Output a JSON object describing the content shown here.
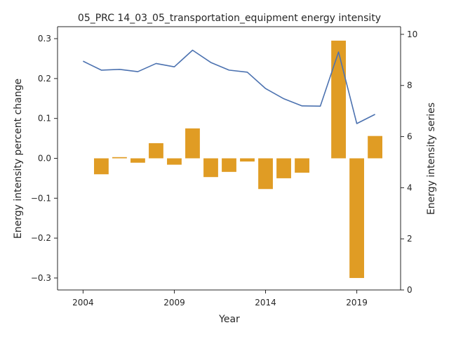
{
  "chart_data": {
    "type": "bar+line",
    "title": "05_PRC 14_03_05_transportation_equipment energy intensity",
    "xlabel": "Year",
    "ylabel_left": "Energy intensity percent change",
    "ylabel_right": "Energy intensity series",
    "x_ticks": [
      2004,
      2009,
      2014,
      2019
    ],
    "x_range": [
      2002.6,
      2021.4
    ],
    "y_left_range": [
      -0.33,
      0.33
    ],
    "y_left_ticks": [
      -0.3,
      -0.2,
      -0.1,
      0.0,
      0.1,
      0.2,
      0.3
    ],
    "y_right_range": [
      0,
      10.3
    ],
    "y_right_ticks": [
      0,
      2,
      4,
      6,
      8,
      10
    ],
    "bar_color": "#e09c24",
    "line_color": "#4c72b0",
    "bars": {
      "name": "Energy intensity percent change",
      "years": [
        2005,
        2006,
        2007,
        2008,
        2009,
        2010,
        2011,
        2012,
        2013,
        2014,
        2015,
        2016,
        2017,
        2018,
        2019,
        2020
      ],
      "values": [
        -0.04,
        0.003,
        -0.011,
        0.038,
        -0.016,
        0.075,
        -0.047,
        -0.034,
        -0.008,
        -0.077,
        -0.05,
        -0.036,
        0.0,
        0.295,
        -0.3,
        0.056
      ]
    },
    "line": {
      "name": "Energy intensity series",
      "years": [
        2004,
        2005,
        2006,
        2007,
        2008,
        2009,
        2010,
        2011,
        2012,
        2013,
        2014,
        2015,
        2016,
        2017,
        2018,
        2019,
        2020
      ],
      "values": [
        8.95,
        8.6,
        8.63,
        8.54,
        8.86,
        8.73,
        9.38,
        8.9,
        8.6,
        8.52,
        7.88,
        7.48,
        7.2,
        7.19,
        9.31,
        6.51,
        6.87
      ]
    }
  }
}
